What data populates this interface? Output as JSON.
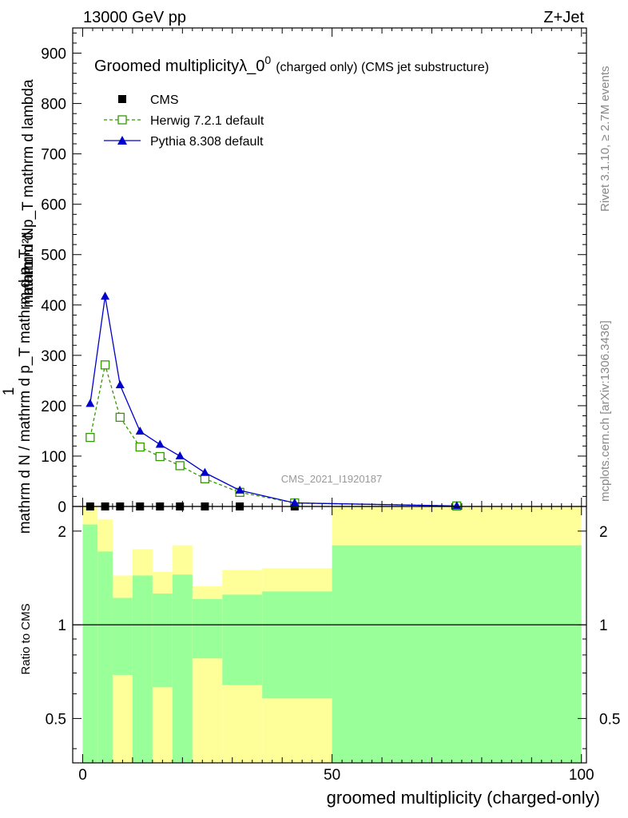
{
  "header": {
    "left": "13000 GeV pp",
    "right": "Z+Jet"
  },
  "side_labels": {
    "rivet": "Rivet 3.1.10, ≥ 2.7M events",
    "mcplots": "mcplots.cern.ch [arXiv:1306.3436]"
  },
  "watermark": "CMS_2021_I1920187",
  "ratio_ylabel": "Ratio to CMS",
  "chart_data": [
    {
      "type": "line",
      "title_main": "Groomed multiplicityλ_0",
      "title_sup": "0",
      "title_small": "(charged only) (CMS jet substructure)",
      "ylabel_top": "mathrm d²N",
      "ylabel_sub_top": "mathrm d p_T mathrm d lambda",
      "ylabel_one": "1",
      "ylabel_bottom": "mathrm d N / mathrm d p_T mathrm d p_T",
      "xlabel": "groomed multiplicity (charged-only)",
      "xlim": [
        -2,
        101
      ],
      "ylim": [
        0,
        950
      ],
      "x_ticks": [
        "0",
        "50",
        "100"
      ],
      "y_ticks": [
        "0",
        "100",
        "200",
        "300",
        "400",
        "500",
        "600",
        "700",
        "800",
        "900"
      ],
      "legend_position": "top-left",
      "series": [
        {
          "name": "CMS",
          "color": "#000000",
          "marker": "square",
          "x": [
            1.5,
            4.5,
            7.5,
            11.5,
            15.5,
            19.5,
            24.5,
            31.5,
            42.5,
            75
          ],
          "y": [
            0,
            0,
            0,
            0,
            0,
            0,
            0,
            0,
            0,
            0
          ]
        },
        {
          "name": "Herwig 7.2.1 default",
          "color": "#339900",
          "marker": "open-square",
          "line": "dashed",
          "x": [
            1.5,
            4.5,
            7.5,
            11.5,
            15.5,
            19.5,
            24.5,
            31.5,
            42.5,
            75
          ],
          "y": [
            137,
            281,
            177,
            118,
            99,
            81,
            55,
            28,
            7,
            1
          ]
        },
        {
          "name": "Pythia 8.308 default",
          "color": "#0000cc",
          "marker": "triangle",
          "line": "solid",
          "x": [
            1.5,
            4.5,
            7.5,
            11.5,
            15.5,
            19.5,
            24.5,
            31.5,
            42.5,
            75
          ],
          "y": [
            204,
            417,
            241,
            149,
            123,
            100,
            67,
            32,
            7,
            1
          ]
        }
      ]
    },
    {
      "type": "area",
      "ylabel": "Ratio to CMS",
      "xlim": [
        -2,
        101
      ],
      "ylim": [
        0.36,
        2.4
      ],
      "log_scale_y": true,
      "y_ticks": [
        "0.5",
        "1",
        "2"
      ],
      "x_ticks": [
        "0",
        "50",
        "100"
      ],
      "reference_line": 1,
      "bands": [
        {
          "xlo": 0,
          "xhi": 3,
          "g_lo": 0.3,
          "g_hi": 2.1,
          "y_lo": 0.3,
          "y_hi": 2.5
        },
        {
          "xlo": 3,
          "xhi": 6,
          "g_lo": 0.3,
          "g_hi": 1.72,
          "y_lo": 0.3,
          "y_hi": 2.18
        },
        {
          "xlo": 6,
          "xhi": 10,
          "g_lo": 0.69,
          "g_hi": 1.22,
          "y_lo": 0.3,
          "y_hi": 1.44
        },
        {
          "xlo": 10,
          "xhi": 14,
          "g_lo": 0.3,
          "g_hi": 1.44,
          "y_lo": 0.3,
          "y_hi": 1.75
        },
        {
          "xlo": 14,
          "xhi": 18,
          "g_lo": 0.63,
          "g_hi": 1.26,
          "y_lo": 0.3,
          "y_hi": 1.48
        },
        {
          "xlo": 18,
          "xhi": 22,
          "g_lo": 0.3,
          "g_hi": 1.45,
          "y_lo": 0.3,
          "y_hi": 1.8
        },
        {
          "xlo": 22,
          "xhi": 28,
          "g_lo": 0.78,
          "g_hi": 1.21,
          "y_lo": 0.3,
          "y_hi": 1.33
        },
        {
          "xlo": 28,
          "xhi": 36,
          "g_lo": 0.64,
          "g_hi": 1.25,
          "y_lo": 0.3,
          "y_hi": 1.5
        },
        {
          "xlo": 36,
          "xhi": 50,
          "g_lo": 0.58,
          "g_hi": 1.28,
          "y_lo": 0.3,
          "y_hi": 1.52
        },
        {
          "xlo": 50,
          "xhi": 100,
          "g_lo": 0.3,
          "g_hi": 1.8,
          "y_lo": 0.3,
          "y_hi": 2.5
        }
      ],
      "colors": {
        "green": "#99ff99",
        "yellow": "#ffff99"
      }
    }
  ]
}
